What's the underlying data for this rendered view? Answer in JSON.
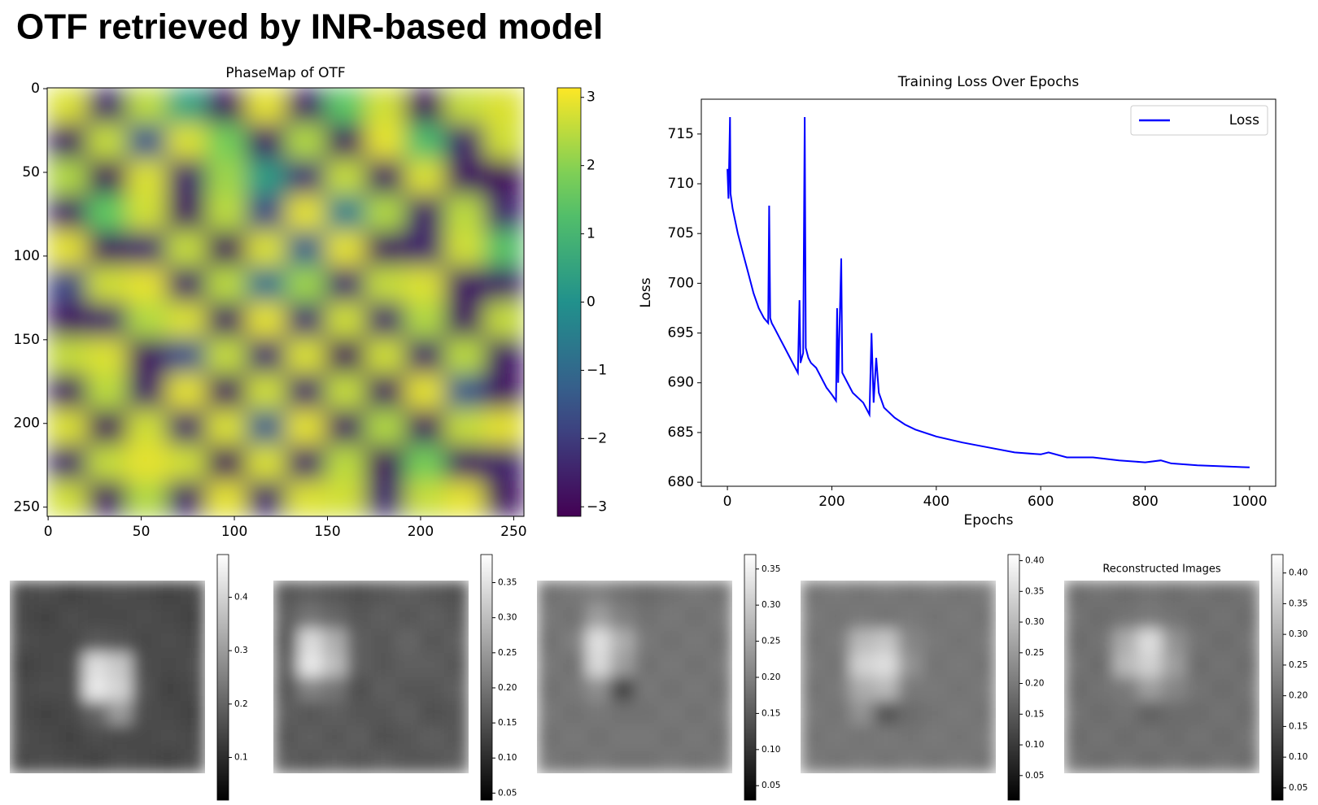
{
  "title": "OTF retrieved by INR-based model",
  "chart_data": [
    {
      "type": "heatmap",
      "title": "PhaseMap of OTF",
      "colormap": "viridis",
      "xlim": [
        -0.5,
        255.5
      ],
      "ylim": [
        255.5,
        -0.5
      ],
      "xticks": [
        0,
        50,
        100,
        150,
        200,
        250
      ],
      "yticks": [
        0,
        50,
        100,
        150,
        200,
        250
      ],
      "clim": [
        -3.14,
        3.14
      ],
      "cticks": [
        3,
        2,
        1,
        0,
        {
          "value": -1,
          "label": "−1"
        },
        {
          "value": -2,
          "label": "−2"
        },
        {
          "value": -3,
          "label": "−3"
        }
      ],
      "z": [
        [
          2.8,
          -2.5,
          2.5,
          0.5,
          -2.8,
          2.9,
          -2.6,
          1.5,
          2.7,
          -2.9,
          2.6,
          2.8
        ],
        [
          -2.7,
          2.6,
          -1.5,
          2.8,
          1.8,
          -2.6,
          2.4,
          -2.8,
          2.9,
          1.2,
          -2.5,
          2.7
        ],
        [
          2.4,
          -2.9,
          2.8,
          -2.5,
          2.2,
          0.3,
          -2.2,
          2.6,
          -2.7,
          2.8,
          -2.8,
          -2.9
        ],
        [
          -2.6,
          1.6,
          2.7,
          -2.8,
          2.5,
          -1.8,
          2.9,
          -0.5,
          2.4,
          -2.6,
          2.5,
          -2.4
        ],
        [
          2.9,
          -2.8,
          -2.4,
          2.6,
          -2.9,
          2.8,
          -1.2,
          2.9,
          -2.8,
          -2.5,
          2.7,
          1.4
        ],
        [
          -1.8,
          2.7,
          2.9,
          -2.6,
          2.5,
          -0.8,
          2.2,
          -2.4,
          2.6,
          2.8,
          -2.7,
          -2.6
        ],
        [
          -2.8,
          -2.5,
          2.4,
          2.8,
          -2.7,
          2.9,
          -2.3,
          2.7,
          -2.5,
          2.4,
          -2.8,
          2.6
        ],
        [
          2.6,
          2.8,
          -2.8,
          -1.6,
          2.6,
          -2.4,
          2.8,
          -2.9,
          2.7,
          -2.6,
          2.5,
          -2.7
        ],
        [
          -2.7,
          2.5,
          -2.6,
          2.9,
          -2.8,
          2.7,
          -2.5,
          2.6,
          -2.8,
          2.9,
          -1.4,
          -2.8
        ],
        [
          2.8,
          -2.9,
          2.7,
          -2.5,
          2.8,
          -1.3,
          2.9,
          -2.7,
          2.4,
          -2.8,
          2.6,
          2.9
        ],
        [
          -2.5,
          2.6,
          2.9,
          2.7,
          -2.9,
          2.8,
          -2.6,
          2.5,
          -2.9,
          1.8,
          -2.7,
          -2.5
        ],
        [
          2.7,
          -2.8,
          2.4,
          -2.6,
          2.9,
          -2.5,
          2.8,
          2.7,
          -2.4,
          2.6,
          2.9,
          -2.8
        ]
      ]
    },
    {
      "type": "line",
      "title": "Training Loss Over Epochs",
      "xlabel": "Epochs",
      "ylabel": "Loss",
      "xlim": [
        -50,
        1050
      ],
      "ylim": [
        679.6,
        718.5
      ],
      "xticks": [
        0,
        200,
        400,
        600,
        800,
        1000
      ],
      "yticks": [
        680,
        685,
        690,
        695,
        700,
        705,
        710,
        715
      ],
      "legend": "upper right",
      "series": [
        {
          "name": "Loss",
          "color": "#0000ff",
          "x": [
            0,
            2,
            5,
            6,
            10,
            20,
            30,
            40,
            50,
            60,
            70,
            78,
            80,
            82,
            85,
            90,
            100,
            110,
            120,
            130,
            135,
            138,
            140,
            145,
            148,
            150,
            155,
            160,
            170,
            180,
            190,
            200,
            208,
            210,
            212,
            218,
            220,
            225,
            240,
            260,
            272,
            276,
            280,
            285,
            290,
            300,
            320,
            340,
            360,
            400,
            450,
            500,
            550,
            600,
            615,
            650,
            700,
            750,
            800,
            830,
            850,
            900,
            950,
            1000
          ],
          "values": [
            711.5,
            708.5,
            716.7,
            709,
            707.5,
            705,
            703,
            701,
            699,
            697.5,
            696.5,
            696,
            707.8,
            696.5,
            696,
            695.5,
            694.5,
            693.5,
            692.5,
            691.5,
            691,
            698.3,
            692,
            693,
            716.7,
            693.5,
            692.5,
            692,
            691.5,
            690.5,
            689.5,
            688.8,
            688.2,
            697.5,
            690,
            702.5,
            691,
            690.5,
            689,
            688,
            686.8,
            695,
            688,
            692.5,
            689,
            687.5,
            686.5,
            685.8,
            685.3,
            684.6,
            684,
            683.5,
            683,
            682.8,
            683,
            682.5,
            682.5,
            682.2,
            682,
            682.2,
            681.9,
            681.7,
            681.6,
            681.5
          ]
        }
      ]
    },
    {
      "type": "image",
      "colormap": "gray",
      "clim": [
        0.02,
        0.48
      ],
      "cticks": [
        0.1,
        0.2,
        0.3,
        0.4
      ],
      "z": [
        [
          0.15,
          0.16,
          0.14,
          0.15,
          0.16,
          0.15,
          0.14,
          0.15
        ],
        [
          0.15,
          0.14,
          0.16,
          0.15,
          0.15,
          0.16,
          0.15,
          0.14
        ],
        [
          0.16,
          0.15,
          0.15,
          0.18,
          0.17,
          0.15,
          0.16,
          0.15
        ],
        [
          0.14,
          0.15,
          0.16,
          0.42,
          0.38,
          0.16,
          0.15,
          0.16
        ],
        [
          0.15,
          0.16,
          0.16,
          0.44,
          0.4,
          0.17,
          0.14,
          0.15
        ],
        [
          0.15,
          0.14,
          0.15,
          0.2,
          0.3,
          0.16,
          0.15,
          0.14
        ],
        [
          0.16,
          0.15,
          0.14,
          0.16,
          0.15,
          0.15,
          0.16,
          0.15
        ],
        [
          0.15,
          0.16,
          0.15,
          0.14,
          0.16,
          0.15,
          0.14,
          0.16
        ]
      ]
    },
    {
      "type": "image",
      "colormap": "gray",
      "clim": [
        0.04,
        0.39
      ],
      "cticks": [
        0.05,
        {
          "value": 0.1,
          "label": "0.10"
        },
        0.15,
        {
          "value": 0.2,
          "label": "0.20"
        },
        0.25,
        {
          "value": 0.3,
          "label": "0.30"
        },
        0.35
      ],
      "z": [
        [
          0.16,
          0.17,
          0.16,
          0.15,
          0.16,
          0.17,
          0.16,
          0.15
        ],
        [
          0.17,
          0.2,
          0.18,
          0.16,
          0.17,
          0.16,
          0.17,
          0.16
        ],
        [
          0.16,
          0.34,
          0.28,
          0.17,
          0.16,
          0.18,
          0.16,
          0.17
        ],
        [
          0.17,
          0.36,
          0.3,
          0.17,
          0.16,
          0.17,
          0.17,
          0.16
        ],
        [
          0.16,
          0.22,
          0.2,
          0.15,
          0.17,
          0.16,
          0.16,
          0.17
        ],
        [
          0.17,
          0.16,
          0.17,
          0.16,
          0.16,
          0.17,
          0.15,
          0.16
        ],
        [
          0.16,
          0.17,
          0.16,
          0.17,
          0.15,
          0.16,
          0.17,
          0.16
        ],
        [
          0.17,
          0.16,
          0.17,
          0.16,
          0.17,
          0.16,
          0.16,
          0.17
        ]
      ]
    },
    {
      "type": "image",
      "colormap": "gray",
      "clim": [
        0.03,
        0.37
      ],
      "cticks": [
        0.05,
        {
          "value": 0.1,
          "label": "0.10"
        },
        0.15,
        {
          "value": 0.2,
          "label": "0.20"
        },
        0.25,
        {
          "value": 0.3,
          "label": "0.30"
        },
        0.35
      ],
      "z": [
        [
          0.18,
          0.19,
          0.2,
          0.18,
          0.17,
          0.18,
          0.19,
          0.18
        ],
        [
          0.19,
          0.18,
          0.24,
          0.2,
          0.18,
          0.19,
          0.18,
          0.19
        ],
        [
          0.18,
          0.2,
          0.33,
          0.26,
          0.19,
          0.18,
          0.19,
          0.18
        ],
        [
          0.19,
          0.18,
          0.32,
          0.24,
          0.18,
          0.19,
          0.18,
          0.19
        ],
        [
          0.18,
          0.19,
          0.22,
          0.12,
          0.19,
          0.18,
          0.19,
          0.18
        ],
        [
          0.19,
          0.18,
          0.19,
          0.18,
          0.18,
          0.19,
          0.18,
          0.19
        ],
        [
          0.18,
          0.19,
          0.18,
          0.19,
          0.19,
          0.18,
          0.19,
          0.18
        ],
        [
          0.19,
          0.18,
          0.19,
          0.18,
          0.18,
          0.19,
          0.18,
          0.19
        ]
      ]
    },
    {
      "type": "image",
      "colormap": "gray",
      "clim": [
        0.01,
        0.41
      ],
      "cticks": [
        0.05,
        {
          "value": 0.1,
          "label": "0.10"
        },
        0.15,
        {
          "value": 0.2,
          "label": "0.20"
        },
        0.25,
        {
          "value": 0.3,
          "label": "0.30"
        },
        0.35,
        {
          "value": 0.4,
          "label": "0.40"
        }
      ],
      "z": [
        [
          0.19,
          0.2,
          0.19,
          0.2,
          0.19,
          0.2,
          0.19,
          0.2
        ],
        [
          0.2,
          0.19,
          0.2,
          0.19,
          0.2,
          0.19,
          0.2,
          0.19
        ],
        [
          0.19,
          0.2,
          0.3,
          0.32,
          0.22,
          0.2,
          0.19,
          0.2
        ],
        [
          0.2,
          0.19,
          0.34,
          0.36,
          0.24,
          0.19,
          0.2,
          0.19
        ],
        [
          0.19,
          0.2,
          0.28,
          0.3,
          0.2,
          0.2,
          0.19,
          0.2
        ],
        [
          0.2,
          0.19,
          0.24,
          0.14,
          0.18,
          0.19,
          0.2,
          0.19
        ],
        [
          0.19,
          0.2,
          0.19,
          0.2,
          0.19,
          0.2,
          0.19,
          0.2
        ],
        [
          0.2,
          0.19,
          0.2,
          0.19,
          0.2,
          0.19,
          0.2,
          0.19
        ]
      ]
    },
    {
      "type": "image",
      "title": "Reconstructed Images",
      "colormap": "gray",
      "clim": [
        0.03,
        0.43
      ],
      "cticks": [
        0.05,
        {
          "value": 0.1,
          "label": "0.10"
        },
        0.15,
        {
          "value": 0.2,
          "label": "0.20"
        },
        0.25,
        {
          "value": 0.3,
          "label": "0.30"
        },
        0.35,
        {
          "value": 0.4,
          "label": "0.40"
        }
      ],
      "z": [
        [
          0.2,
          0.21,
          0.2,
          0.21,
          0.2,
          0.21,
          0.2,
          0.21
        ],
        [
          0.21,
          0.2,
          0.21,
          0.22,
          0.21,
          0.2,
          0.21,
          0.2
        ],
        [
          0.2,
          0.21,
          0.3,
          0.38,
          0.26,
          0.21,
          0.2,
          0.21
        ],
        [
          0.21,
          0.2,
          0.32,
          0.36,
          0.28,
          0.2,
          0.21,
          0.2
        ],
        [
          0.2,
          0.21,
          0.22,
          0.28,
          0.24,
          0.21,
          0.2,
          0.21
        ],
        [
          0.21,
          0.2,
          0.21,
          0.18,
          0.2,
          0.2,
          0.21,
          0.2
        ],
        [
          0.2,
          0.21,
          0.2,
          0.21,
          0.2,
          0.21,
          0.2,
          0.21
        ],
        [
          0.21,
          0.2,
          0.21,
          0.2,
          0.21,
          0.2,
          0.21,
          0.2
        ]
      ]
    }
  ]
}
